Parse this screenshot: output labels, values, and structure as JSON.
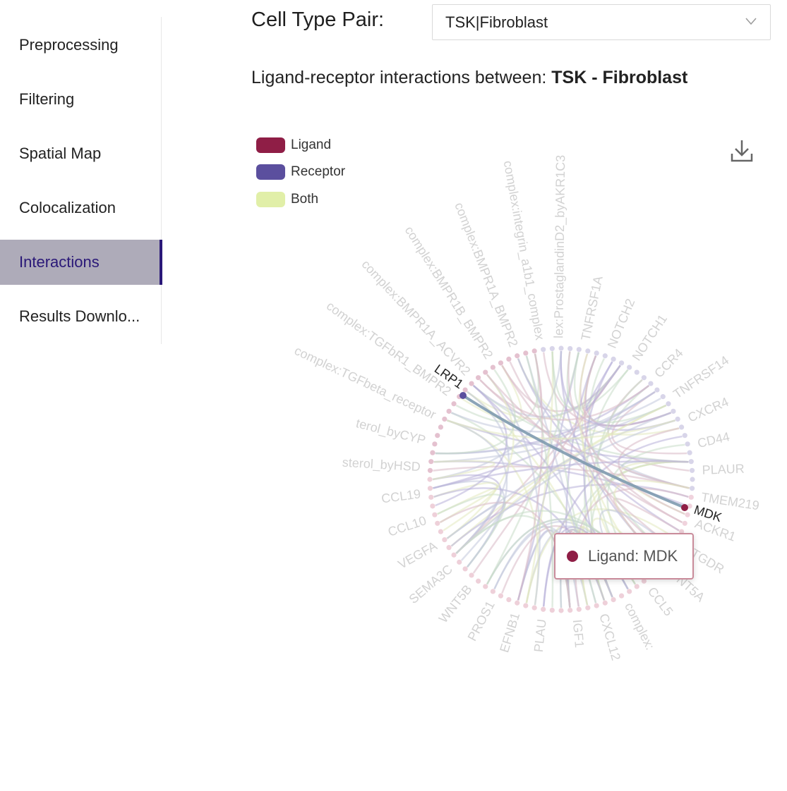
{
  "sidebar": {
    "items": [
      {
        "label": "Preprocessing",
        "name": "sidebar-item-preprocessing",
        "active": false
      },
      {
        "label": "Filtering",
        "name": "sidebar-item-filtering",
        "active": false
      },
      {
        "label": "Spatial Map",
        "name": "sidebar-item-spatial-map",
        "active": false
      },
      {
        "label": "Colocalization",
        "name": "sidebar-item-colocalization",
        "active": false
      },
      {
        "label": "Interactions",
        "name": "sidebar-item-interactions",
        "active": true
      },
      {
        "label": "Results Downlo...",
        "name": "sidebar-item-results-download",
        "active": false
      }
    ]
  },
  "main": {
    "pair_label": "Cell Type Pair:",
    "pair_value": "TSK|Fibroblast",
    "heading_prefix": "Ligand-receptor interactions between: ",
    "heading_pair": "TSK - Fibroblast"
  },
  "legend": [
    {
      "label": "Ligand",
      "color": "#8f1e46"
    },
    {
      "label": "Receptor",
      "color": "#5b4f9e"
    },
    {
      "label": "Both",
      "color": "#e1efa8"
    }
  ],
  "icons": {
    "download": "download-icon",
    "dropdown": "chevron-down-icon"
  },
  "chord": {
    "highlight": {
      "source": "LRP1",
      "target": "MDK"
    },
    "faded_labels": [
      "complex:TGFbeta_receptor",
      "complex:TGFbR1_BMPR2",
      "complex:BMPR1A_ACVR2",
      "complex:BMPR1B_BMPR2",
      "complex:BMPR1A_BMPR2",
      "complex:integrin_a1b1_complex",
      "lex:ProstaglandinD2_byAKR1C3",
      "TNFRSF1A",
      "NOTCH2",
      "NOTCH1",
      "CCR4",
      "TNFRSF14",
      "CXCR4",
      "CD44",
      "PLAUR",
      "TMEM219",
      "ACKR1",
      "PTGDR",
      "WNT5A",
      "CCL5",
      "complex:",
      "CXCL12",
      "IGF1",
      "PLAU",
      "EFNB1",
      "PROS1",
      "WNT5B",
      "SEMA3C",
      "VEGFA",
      "CCL10",
      "CCL19",
      "sterol_byHSD",
      "terol_byCYP"
    ]
  },
  "tooltip": {
    "text": "Ligand: MDK",
    "color": "#8f1e46"
  }
}
